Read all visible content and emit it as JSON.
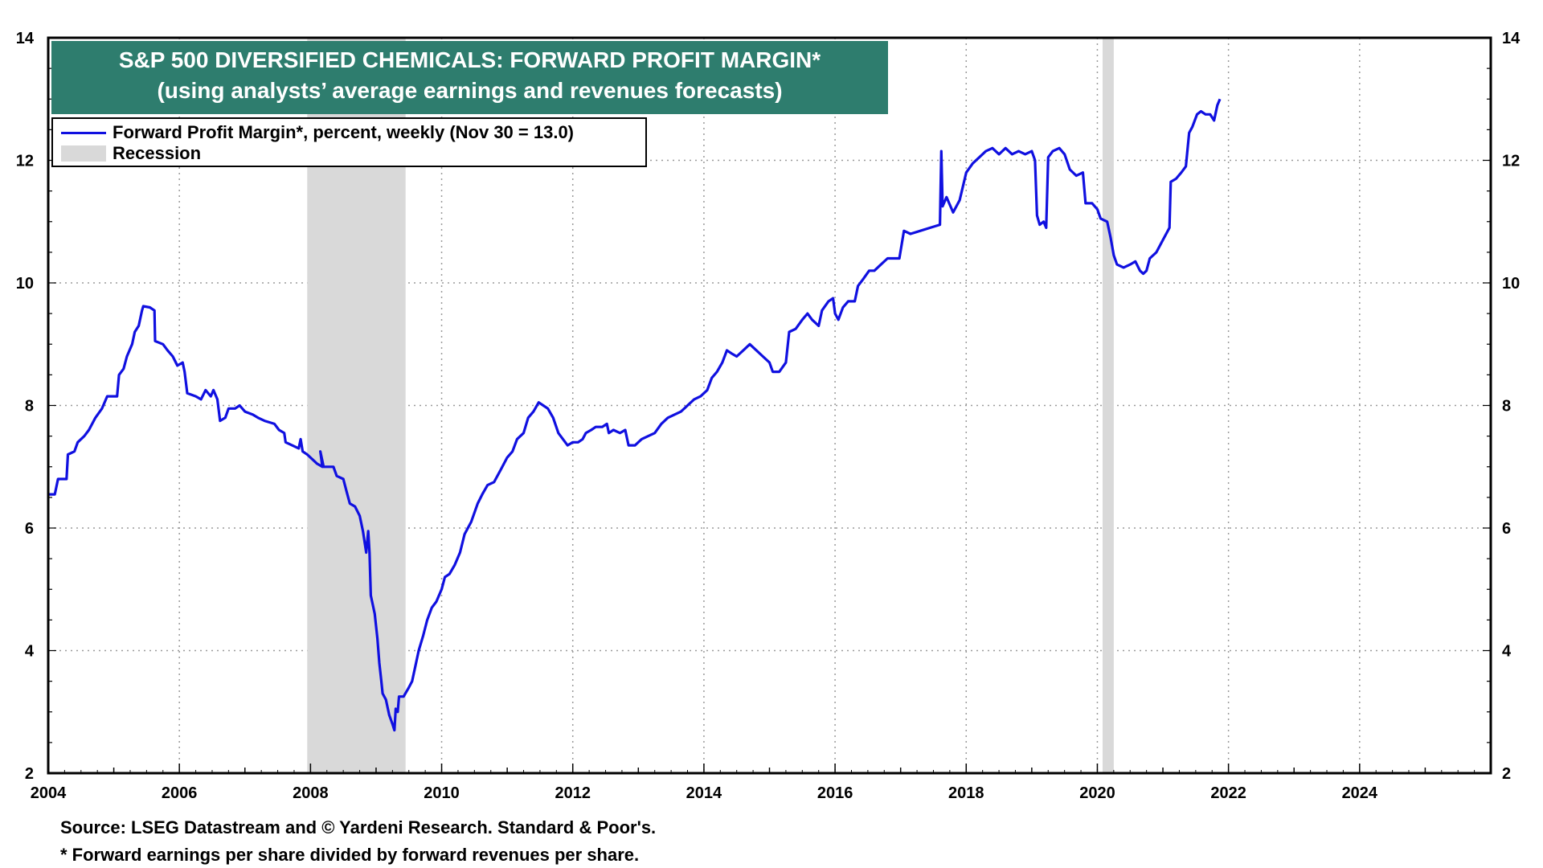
{
  "chart_data": {
    "type": "line",
    "title": "S&P 500 DIVERSIFIED CHEMICALS: FORWARD PROFIT MARGIN*",
    "subtitle": "(using analysts’ average earnings and revenues forecasts)",
    "xlim": [
      2004,
      2026
    ],
    "ylim": [
      2,
      14
    ],
    "x_ticks": [
      2004,
      2006,
      2008,
      2010,
      2012,
      2014,
      2016,
      2018,
      2020,
      2022,
      2024
    ],
    "x_tick_labels": [
      "2004",
      "2006",
      "2008",
      "2010",
      "2012",
      "2014",
      "2016",
      "2018",
      "2020",
      "2022",
      "2024"
    ],
    "y_ticks": [
      2,
      4,
      6,
      8,
      10,
      12,
      14
    ],
    "y_tick_labels": [
      "2",
      "4",
      "6",
      "8",
      "10",
      "12",
      "14"
    ],
    "grid": true,
    "legend_position": "top-left",
    "series": [
      {
        "name": "Forward Profit Margin*, percent, weekly (Nov 30 = 13.0)",
        "color": "#1010e0",
        "points": [
          [
            2004.0,
            6.55
          ],
          [
            2004.1,
            6.55
          ],
          [
            2004.15,
            6.8
          ],
          [
            2004.28,
            6.8
          ],
          [
            2004.3,
            7.2
          ],
          [
            2004.4,
            7.25
          ],
          [
            2004.45,
            7.4
          ],
          [
            2004.55,
            7.5
          ],
          [
            2004.62,
            7.6
          ],
          [
            2004.72,
            7.8
          ],
          [
            2004.82,
            7.95
          ],
          [
            2004.9,
            8.15
          ],
          [
            2004.98,
            8.15
          ],
          [
            2005.05,
            8.15
          ],
          [
            2005.08,
            8.5
          ],
          [
            2005.15,
            8.6
          ],
          [
            2005.2,
            8.8
          ],
          [
            2005.28,
            9.0
          ],
          [
            2005.32,
            9.2
          ],
          [
            2005.38,
            9.3
          ],
          [
            2005.43,
            9.55
          ],
          [
            2005.45,
            9.62
          ],
          [
            2005.55,
            9.6
          ],
          [
            2005.62,
            9.55
          ],
          [
            2005.63,
            9.05
          ],
          [
            2005.75,
            9.0
          ],
          [
            2005.82,
            8.9
          ],
          [
            2005.9,
            8.8
          ],
          [
            2005.97,
            8.65
          ],
          [
            2006.05,
            8.7
          ],
          [
            2006.08,
            8.55
          ],
          [
            2006.12,
            8.2
          ],
          [
            2006.25,
            8.15
          ],
          [
            2006.33,
            8.1
          ],
          [
            2006.4,
            8.25
          ],
          [
            2006.48,
            8.15
          ],
          [
            2006.52,
            8.25
          ],
          [
            2006.58,
            8.1
          ],
          [
            2006.62,
            7.75
          ],
          [
            2006.7,
            7.8
          ],
          [
            2006.75,
            7.95
          ],
          [
            2006.85,
            7.95
          ],
          [
            2006.92,
            8.0
          ],
          [
            2007.0,
            7.9
          ],
          [
            2007.12,
            7.85
          ],
          [
            2007.2,
            7.8
          ],
          [
            2007.3,
            7.75
          ],
          [
            2007.45,
            7.7
          ],
          [
            2007.52,
            7.6
          ],
          [
            2007.6,
            7.55
          ],
          [
            2007.62,
            7.4
          ],
          [
            2007.72,
            7.35
          ],
          [
            2007.82,
            7.3
          ],
          [
            2007.85,
            7.45
          ],
          [
            2007.88,
            7.25
          ],
          [
            2007.95,
            7.2
          ],
          [
            2008.05,
            7.1
          ],
          [
            2008.1,
            7.05
          ],
          [
            2008.18,
            7.0
          ],
          [
            2008.15,
            7.25
          ],
          [
            2008.2,
            7.0
          ],
          [
            2008.35,
            7.0
          ],
          [
            2008.4,
            6.85
          ],
          [
            2008.5,
            6.8
          ],
          [
            2008.55,
            6.6
          ],
          [
            2008.6,
            6.4
          ],
          [
            2008.68,
            6.35
          ],
          [
            2008.75,
            6.2
          ],
          [
            2008.8,
            5.95
          ],
          [
            2008.85,
            5.6
          ],
          [
            2008.88,
            5.95
          ],
          [
            2008.9,
            5.6
          ],
          [
            2008.92,
            4.9
          ],
          [
            2008.98,
            4.6
          ],
          [
            2009.02,
            4.2
          ],
          [
            2009.05,
            3.8
          ],
          [
            2009.08,
            3.5
          ],
          [
            2009.1,
            3.3
          ],
          [
            2009.15,
            3.2
          ],
          [
            2009.2,
            2.95
          ],
          [
            2009.25,
            2.8
          ],
          [
            2009.28,
            2.7
          ],
          [
            2009.3,
            3.05
          ],
          [
            2009.33,
            3.0
          ],
          [
            2009.35,
            3.25
          ],
          [
            2009.42,
            3.25
          ],
          [
            2009.5,
            3.4
          ],
          [
            2009.55,
            3.5
          ],
          [
            2009.6,
            3.75
          ],
          [
            2009.65,
            4.0
          ],
          [
            2009.72,
            4.25
          ],
          [
            2009.78,
            4.5
          ],
          [
            2009.85,
            4.7
          ],
          [
            2009.92,
            4.8
          ],
          [
            2010.0,
            5.0
          ],
          [
            2010.05,
            5.2
          ],
          [
            2010.12,
            5.25
          ],
          [
            2010.2,
            5.4
          ],
          [
            2010.28,
            5.6
          ],
          [
            2010.35,
            5.9
          ],
          [
            2010.45,
            6.1
          ],
          [
            2010.55,
            6.4
          ],
          [
            2010.62,
            6.55
          ],
          [
            2010.7,
            6.7
          ],
          [
            2010.8,
            6.75
          ],
          [
            2010.9,
            6.95
          ],
          [
            2011.0,
            7.15
          ],
          [
            2011.08,
            7.25
          ],
          [
            2011.15,
            7.45
          ],
          [
            2011.25,
            7.55
          ],
          [
            2011.32,
            7.8
          ],
          [
            2011.4,
            7.9
          ],
          [
            2011.48,
            8.05
          ],
          [
            2011.55,
            8.0
          ],
          [
            2011.62,
            7.95
          ],
          [
            2011.7,
            7.8
          ],
          [
            2011.78,
            7.55
          ],
          [
            2011.85,
            7.45
          ],
          [
            2011.92,
            7.35
          ],
          [
            2012.0,
            7.4
          ],
          [
            2012.08,
            7.4
          ],
          [
            2012.15,
            7.45
          ],
          [
            2012.2,
            7.55
          ],
          [
            2012.28,
            7.6
          ],
          [
            2012.35,
            7.65
          ],
          [
            2012.45,
            7.65
          ],
          [
            2012.52,
            7.7
          ],
          [
            2012.55,
            7.55
          ],
          [
            2012.62,
            7.6
          ],
          [
            2012.72,
            7.55
          ],
          [
            2012.8,
            7.6
          ],
          [
            2012.85,
            7.35
          ],
          [
            2012.95,
            7.35
          ],
          [
            2013.05,
            7.45
          ],
          [
            2013.15,
            7.5
          ],
          [
            2013.25,
            7.55
          ],
          [
            2013.35,
            7.7
          ],
          [
            2013.45,
            7.8
          ],
          [
            2013.55,
            7.85
          ],
          [
            2013.65,
            7.9
          ],
          [
            2013.75,
            8.0
          ],
          [
            2013.85,
            8.1
          ],
          [
            2013.95,
            8.15
          ],
          [
            2014.05,
            8.25
          ],
          [
            2014.12,
            8.45
          ],
          [
            2014.2,
            8.55
          ],
          [
            2014.28,
            8.7
          ],
          [
            2014.35,
            8.9
          ],
          [
            2014.42,
            8.85
          ],
          [
            2014.5,
            8.8
          ],
          [
            2014.6,
            8.9
          ],
          [
            2014.7,
            9.0
          ],
          [
            2014.8,
            8.9
          ],
          [
            2014.9,
            8.8
          ],
          [
            2015.0,
            8.7
          ],
          [
            2015.05,
            8.55
          ],
          [
            2015.15,
            8.55
          ],
          [
            2015.25,
            8.7
          ],
          [
            2015.3,
            9.2
          ],
          [
            2015.4,
            9.25
          ],
          [
            2015.5,
            9.4
          ],
          [
            2015.58,
            9.5
          ],
          [
            2015.65,
            9.4
          ],
          [
            2015.75,
            9.3
          ],
          [
            2015.8,
            9.55
          ],
          [
            2015.9,
            9.7
          ],
          [
            2015.97,
            9.75
          ],
          [
            2016.0,
            9.5
          ],
          [
            2016.05,
            9.4
          ],
          [
            2016.12,
            9.6
          ],
          [
            2016.2,
            9.7
          ],
          [
            2016.3,
            9.7
          ],
          [
            2016.35,
            9.95
          ],
          [
            2016.42,
            10.05
          ],
          [
            2016.52,
            10.2
          ],
          [
            2016.6,
            10.2
          ],
          [
            2016.7,
            10.3
          ],
          [
            2016.8,
            10.4
          ],
          [
            2016.88,
            10.4
          ],
          [
            2016.98,
            10.4
          ],
          [
            2017.05,
            10.85
          ],
          [
            2017.15,
            10.8
          ],
          [
            2017.3,
            10.85
          ],
          [
            2017.45,
            10.9
          ],
          [
            2017.6,
            10.95
          ],
          [
            2017.62,
            12.15
          ],
          [
            2017.64,
            11.25
          ],
          [
            2017.7,
            11.4
          ],
          [
            2017.8,
            11.15
          ],
          [
            2017.9,
            11.35
          ],
          [
            2018.0,
            11.8
          ],
          [
            2018.1,
            11.95
          ],
          [
            2018.2,
            12.05
          ],
          [
            2018.3,
            12.15
          ],
          [
            2018.4,
            12.2
          ],
          [
            2018.5,
            12.1
          ],
          [
            2018.6,
            12.2
          ],
          [
            2018.7,
            12.1
          ],
          [
            2018.8,
            12.15
          ],
          [
            2018.9,
            12.1
          ],
          [
            2019.0,
            12.15
          ],
          [
            2019.05,
            12.0
          ],
          [
            2019.08,
            11.1
          ],
          [
            2019.12,
            10.95
          ],
          [
            2019.18,
            11.0
          ],
          [
            2019.22,
            10.9
          ],
          [
            2019.25,
            12.05
          ],
          [
            2019.32,
            12.15
          ],
          [
            2019.42,
            12.2
          ],
          [
            2019.5,
            12.1
          ],
          [
            2019.58,
            11.85
          ],
          [
            2019.68,
            11.75
          ],
          [
            2019.78,
            11.8
          ],
          [
            2019.82,
            11.3
          ],
          [
            2019.92,
            11.3
          ],
          [
            2020.0,
            11.2
          ],
          [
            2020.05,
            11.05
          ],
          [
            2020.15,
            11.0
          ],
          [
            2020.2,
            10.75
          ],
          [
            2020.25,
            10.45
          ],
          [
            2020.3,
            10.3
          ],
          [
            2020.4,
            10.25
          ],
          [
            2020.5,
            10.3
          ],
          [
            2020.58,
            10.35
          ],
          [
            2020.65,
            10.2
          ],
          [
            2020.7,
            10.15
          ],
          [
            2020.75,
            10.2
          ],
          [
            2020.8,
            10.4
          ],
          [
            2020.9,
            10.5
          ],
          [
            2021.0,
            10.7
          ],
          [
            2021.05,
            10.8
          ],
          [
            2021.1,
            10.9
          ],
          [
            2021.12,
            11.65
          ],
          [
            2021.2,
            11.7
          ],
          [
            2021.28,
            11.8
          ],
          [
            2021.35,
            11.9
          ],
          [
            2021.4,
            12.45
          ],
          [
            2021.45,
            12.55
          ],
          [
            2021.52,
            12.75
          ],
          [
            2021.58,
            12.8
          ],
          [
            2021.65,
            12.75
          ],
          [
            2021.72,
            12.75
          ],
          [
            2021.78,
            12.65
          ],
          [
            2021.83,
            12.9
          ],
          [
            2021.87,
            13.0
          ]
        ]
      }
    ],
    "recessions": [
      [
        2007.95,
        2009.45
      ],
      [
        2020.08,
        2020.25
      ]
    ],
    "legend": [
      "Forward Profit Margin*, percent, weekly (Nov 30 = 13.0)",
      "Recession"
    ]
  },
  "footnotes": {
    "source": "Source: LSEG Datastream and © Yardeni Research. Standard & Poor's.",
    "note": "* Forward earnings per share divided by forward revenues per share."
  }
}
